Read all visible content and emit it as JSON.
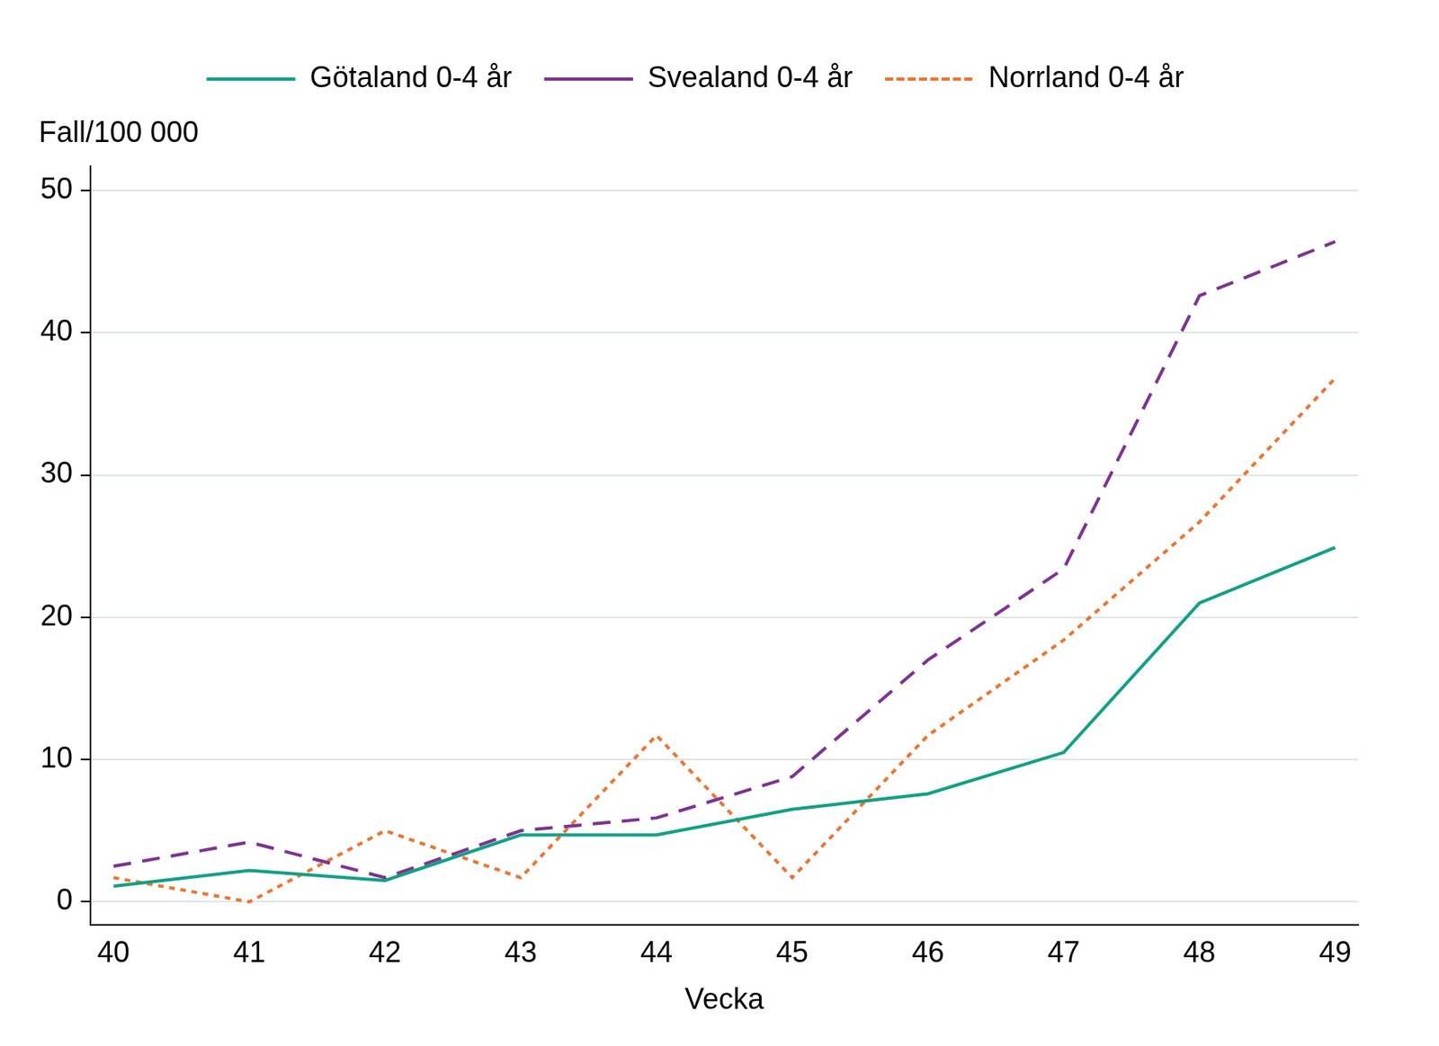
{
  "chart_data": {
    "type": "line",
    "x_label": "Vecka",
    "y_label": "Fall/100 000",
    "x": [
      40,
      41,
      42,
      43,
      44,
      45,
      46,
      47,
      48,
      49
    ],
    "series": [
      {
        "name": "Götaland 0-4 år",
        "color": "#13a085",
        "line_style": "solid",
        "values": [
          1.1,
          2.2,
          1.5,
          4.7,
          4.7,
          6.5,
          7.6,
          10.5,
          21.0,
          24.9
        ]
      },
      {
        "name": "Svealand 0-4 år",
        "color": "#7d3392",
        "line_style": "dashed",
        "values": [
          2.5,
          4.2,
          1.7,
          5.0,
          5.9,
          8.8,
          17.0,
          23.4,
          42.6,
          46.4
        ]
      },
      {
        "name": "Norrland 0-4 år",
        "color": "#ea7634",
        "line_style": "dotted",
        "values": [
          1.7,
          0.0,
          5.0,
          1.7,
          11.7,
          1.7,
          11.7,
          18.4,
          26.7,
          36.8
        ]
      }
    ],
    "xlim": [
      39.83,
      49.17
    ],
    "xticks": [
      40,
      41,
      42,
      43,
      44,
      45,
      46,
      47,
      48,
      49
    ],
    "ylim": [
      -1.6,
      51.7
    ],
    "yticks": [
      0,
      10,
      20,
      30,
      40,
      50
    ],
    "grid": true,
    "legend": "top"
  }
}
